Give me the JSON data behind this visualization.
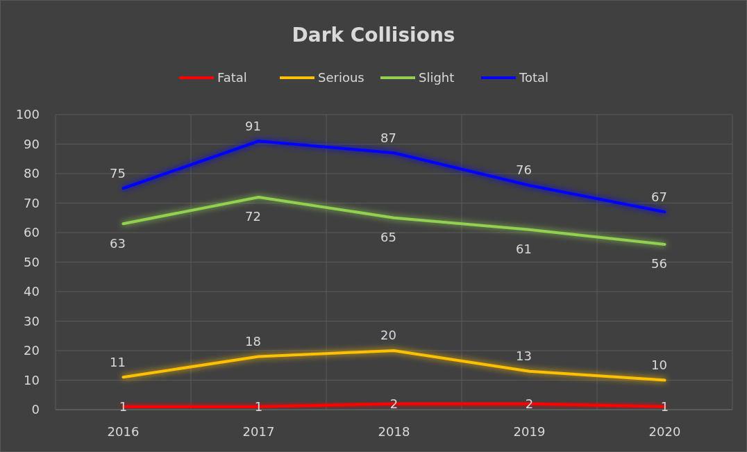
{
  "chart_data": {
    "type": "line",
    "title": "Dark Collisions",
    "categories": [
      "2016",
      "2017",
      "2018",
      "2019",
      "2020"
    ],
    "series": [
      {
        "name": "Fatal",
        "color": "#ff0000",
        "values": [
          1,
          1,
          2,
          2,
          1
        ]
      },
      {
        "name": "Serious",
        "color": "#ffc000",
        "values": [
          11,
          18,
          20,
          13,
          10
        ]
      },
      {
        "name": "Slight",
        "color": "#92d050",
        "values": [
          63,
          72,
          65,
          61,
          56
        ]
      },
      {
        "name": "Total",
        "color": "#0000ff",
        "values": [
          75,
          91,
          87,
          76,
          67
        ]
      }
    ],
    "ylim": [
      0,
      100
    ],
    "yticks": [
      0,
      10,
      20,
      30,
      40,
      50,
      60,
      70,
      80,
      90,
      100
    ],
    "grid": true,
    "legend": "top",
    "data_labels": true,
    "marker": "none",
    "line_style": "solid"
  }
}
